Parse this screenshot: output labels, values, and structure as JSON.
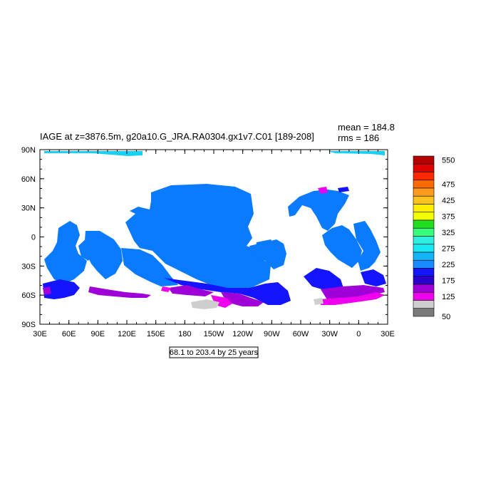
{
  "title": "IAGE at z=3876.5m, g20a10.G_JRA.RA0304.gx1v7.C01 [189-208]",
  "stats": {
    "mean_label": "mean = 184.8",
    "rms_label": "rms = 186"
  },
  "range_caption": "68.1 to 203.4 by 25 years",
  "axes": {
    "lat_ticks": [
      "90N",
      "60N",
      "30N",
      "0",
      "30S",
      "60S",
      "90S"
    ],
    "lon_ticks": [
      "30E",
      "60E",
      "90E",
      "120E",
      "150E",
      "180",
      "150W",
      "120W",
      "90W",
      "60W",
      "30W",
      "0",
      "30E"
    ]
  },
  "colorbar": {
    "labels": [
      "550",
      "475",
      "425",
      "375",
      "325",
      "275",
      "225",
      "175",
      "125",
      "50"
    ],
    "colors": [
      "#b50000",
      "#e00000",
      "#ff2a00",
      "#ff6a00",
      "#ff9a1e",
      "#ffc21e",
      "#ffee00",
      "#f2ff00",
      "#22dd22",
      "#36ff7a",
      "#2ff0e0",
      "#18e8f4",
      "#14b4ff",
      "#1a8cff",
      "#1414ff",
      "#2a00cc",
      "#a000d8",
      "#ee00ee",
      "#cfcfcf",
      "#7a7a7a"
    ]
  },
  "map": {
    "ocean_fill_color": "#0a7aff",
    "deep_blue": "#1414ff",
    "purple": "#a000d8",
    "magenta": "#ee00ee",
    "gray": "#cfcfcf",
    "light_blue": "#18d0f4"
  }
}
